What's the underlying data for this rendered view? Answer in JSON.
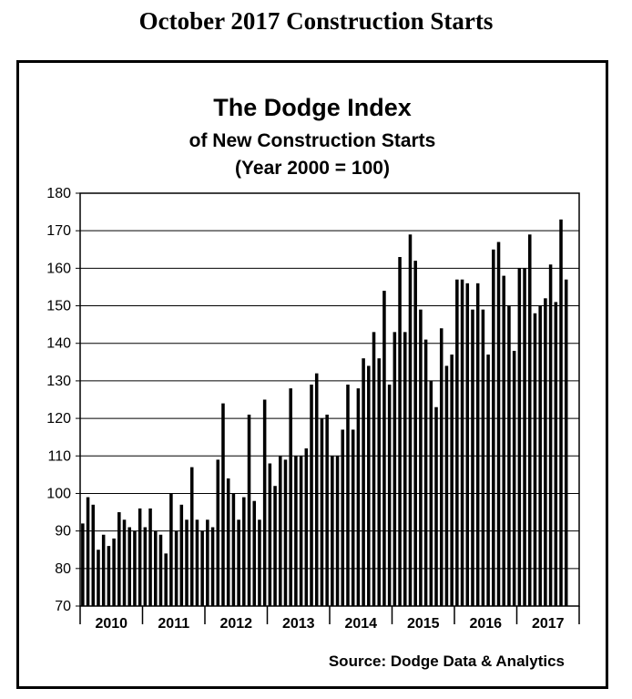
{
  "page": {
    "title": "October 2017 Construction Starts"
  },
  "chart_data": {
    "type": "bar",
    "title": "The Dodge Index",
    "subtitle": "of New Construction Starts",
    "subtitle2": "(Year 2000 = 100)",
    "source": "Source:  Dodge Data & Analytics",
    "xlabel": "",
    "ylabel": "",
    "ylim": [
      70,
      180
    ],
    "yticks": [
      70,
      80,
      90,
      100,
      110,
      120,
      130,
      140,
      150,
      160,
      170,
      180
    ],
    "grid": true,
    "legend": "none",
    "bar_color": "#000000",
    "year_labels": [
      "2010",
      "2011",
      "2012",
      "2013",
      "2014",
      "2015",
      "2016",
      "2017"
    ],
    "values": [
      92,
      99,
      97,
      85,
      89,
      86,
      88,
      95,
      93,
      91,
      90,
      96,
      91,
      96,
      90,
      89,
      84,
      100,
      90,
      97,
      93,
      107,
      93,
      90,
      93,
      91,
      109,
      124,
      104,
      100,
      93,
      99,
      121,
      98,
      93,
      125,
      108,
      102,
      110,
      109,
      128,
      110,
      110,
      112,
      129,
      132,
      120,
      121,
      110,
      110,
      117,
      129,
      117,
      128,
      136,
      134,
      143,
      136,
      154,
      129,
      143,
      163,
      143,
      169,
      162,
      149,
      141,
      130,
      123,
      144,
      134,
      137,
      157,
      157,
      156,
      149,
      156,
      149,
      137,
      165,
      167,
      158,
      150,
      138,
      160,
      160,
      169,
      148,
      150,
      152,
      161,
      151,
      173,
      157
    ]
  }
}
